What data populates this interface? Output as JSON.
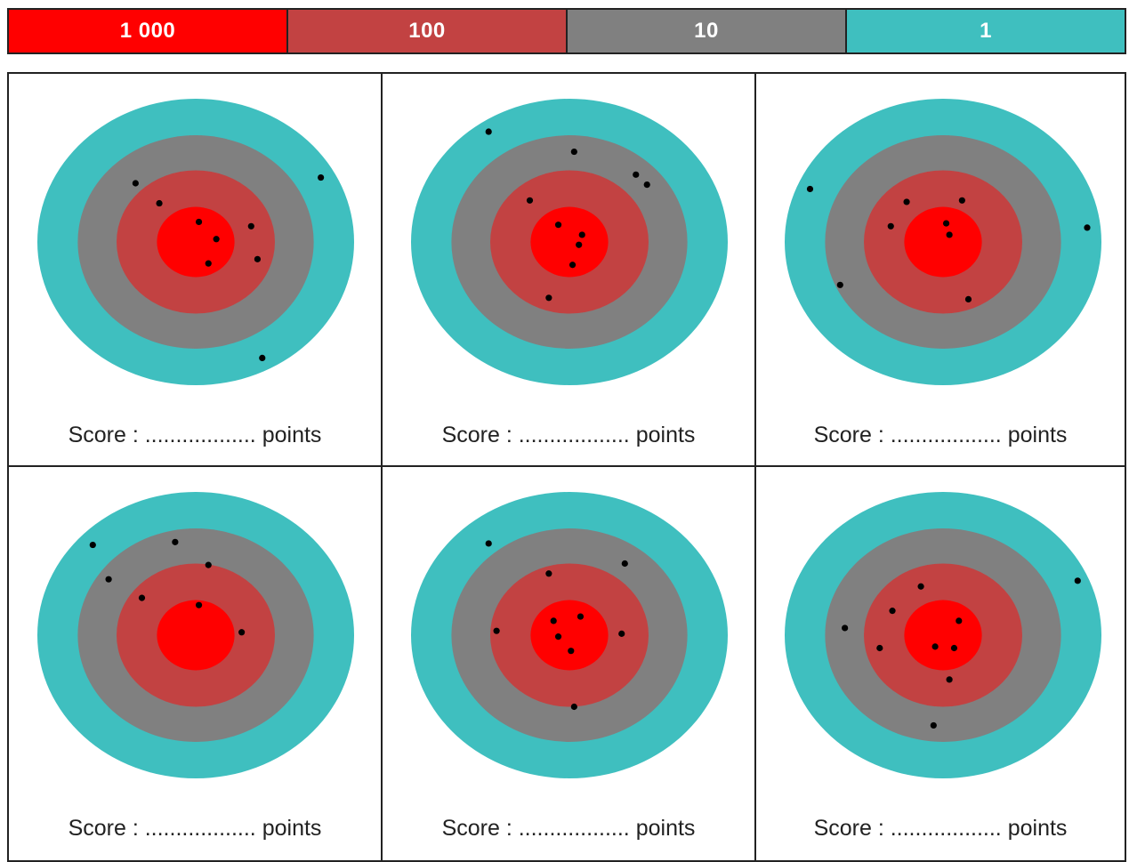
{
  "legend": {
    "items": [
      {
        "label": "1 000",
        "color": "#ff0000"
      },
      {
        "label": "100",
        "color": "#c24242"
      },
      {
        "label": "10",
        "color": "#808080"
      },
      {
        "label": "1",
        "color": "#3fbfbf"
      }
    ]
  },
  "target_colors": {
    "outer": "#3fbfbf",
    "ring_10": "#808080",
    "ring_100": "#c24242",
    "center": "#ff0000",
    "dot": "#000000"
  },
  "score_line": {
    "prefix": "Score :",
    "dots": "..................",
    "suffix": "points"
  },
  "targets": [
    {
      "hits": [
        [
          -0.38,
          -0.41
        ],
        [
          -0.23,
          -0.27
        ],
        [
          0.02,
          -0.14
        ],
        [
          0.13,
          -0.02
        ],
        [
          0.35,
          -0.11
        ],
        [
          0.08,
          0.15
        ],
        [
          0.39,
          0.12
        ],
        [
          0.79,
          -0.45
        ],
        [
          0.42,
          0.81
        ]
      ]
    },
    {
      "hits": [
        [
          -0.51,
          -0.77
        ],
        [
          0.03,
          -0.63
        ],
        [
          0.42,
          -0.47
        ],
        [
          0.49,
          -0.4
        ],
        [
          -0.25,
          -0.29
        ],
        [
          -0.07,
          -0.12
        ],
        [
          0.08,
          -0.05
        ],
        [
          0.06,
          0.02
        ],
        [
          0.02,
          0.16
        ],
        [
          -0.13,
          0.39
        ]
      ]
    },
    {
      "hits": [
        [
          -0.84,
          -0.37
        ],
        [
          -0.23,
          -0.28
        ],
        [
          0.12,
          -0.29
        ],
        [
          -0.33,
          -0.11
        ],
        [
          0.02,
          -0.13
        ],
        [
          0.04,
          -0.05
        ],
        [
          0.91,
          -0.1
        ],
        [
          -0.65,
          0.3
        ],
        [
          0.16,
          0.4
        ]
      ]
    },
    {
      "hits": [
        [
          -0.65,
          -0.63
        ],
        [
          -0.13,
          -0.65
        ],
        [
          0.08,
          -0.49
        ],
        [
          -0.55,
          -0.39
        ],
        [
          -0.34,
          -0.26
        ],
        [
          0.02,
          -0.21
        ],
        [
          0.29,
          -0.02
        ]
      ]
    },
    {
      "hits": [
        [
          -0.51,
          -0.64
        ],
        [
          0.35,
          -0.5
        ],
        [
          -0.13,
          -0.43
        ],
        [
          -0.1,
          -0.1
        ],
        [
          0.07,
          -0.13
        ],
        [
          -0.46,
          -0.03
        ],
        [
          -0.07,
          0.01
        ],
        [
          0.33,
          -0.01
        ],
        [
          0.01,
          0.11
        ],
        [
          0.03,
          0.5
        ]
      ]
    },
    {
      "hits": [
        [
          0.85,
          -0.38
        ],
        [
          -0.14,
          -0.34
        ],
        [
          -0.32,
          -0.17
        ],
        [
          -0.62,
          -0.05
        ],
        [
          0.1,
          -0.1
        ],
        [
          -0.4,
          0.09
        ],
        [
          -0.05,
          0.08
        ],
        [
          0.07,
          0.09
        ],
        [
          0.04,
          0.31
        ],
        [
          -0.06,
          0.63
        ]
      ]
    }
  ]
}
